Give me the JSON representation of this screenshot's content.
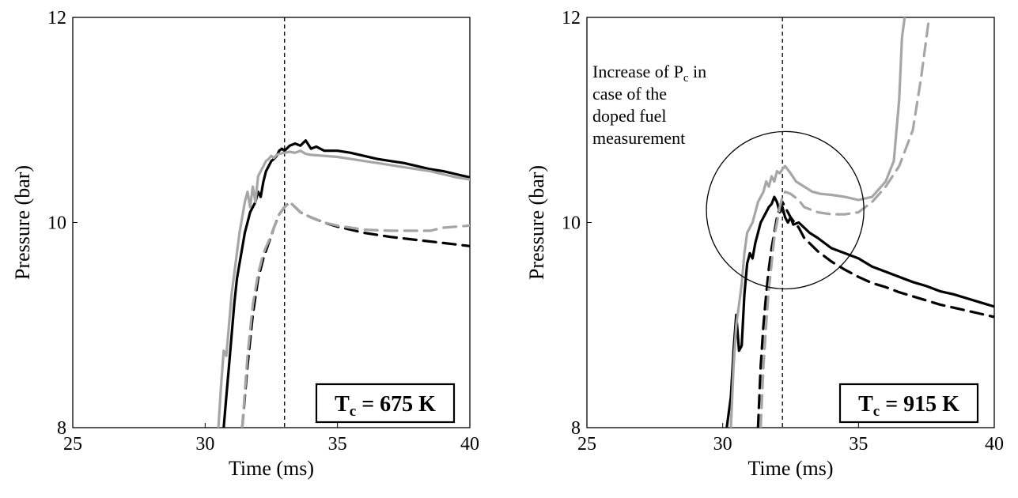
{
  "chart_data": [
    {
      "type": "line",
      "xlabel": "Time (ms)",
      "ylabel": "Pressure (bar)",
      "xlim": [
        25,
        40
      ],
      "ylim": [
        8,
        12
      ],
      "xticks": [
        "25",
        "30",
        "35",
        "40"
      ],
      "yticks": [
        "8",
        "10",
        "12"
      ],
      "label_main": "T",
      "label_sub": "c",
      "label_rest": " = 675 K",
      "vline_x": 33.0,
      "grid": false,
      "series": [
        {
          "color": "#000000",
          "style": "solid",
          "x": [
            30.7,
            30.8,
            30.9,
            31.0,
            31.1,
            31.2,
            31.3,
            31.4,
            31.5,
            31.6,
            31.7,
            31.8,
            31.9,
            32.0,
            32.1,
            32.2,
            32.3,
            32.4,
            32.5,
            32.6,
            32.7,
            32.8,
            32.9,
            33.0,
            33.2,
            33.4,
            33.6,
            33.8,
            34.0,
            34.2,
            34.5,
            35.0,
            35.5,
            36.0,
            36.5,
            37.0,
            37.5,
            38.0,
            38.5,
            39.0,
            39.5,
            40.0
          ],
          "y": [
            8.0,
            8.3,
            8.6,
            8.9,
            9.2,
            9.45,
            9.6,
            9.75,
            9.9,
            10.0,
            10.1,
            10.15,
            10.2,
            10.3,
            10.25,
            10.4,
            10.5,
            10.55,
            10.6,
            10.62,
            10.65,
            10.7,
            10.72,
            10.7,
            10.75,
            10.77,
            10.75,
            10.8,
            10.72,
            10.74,
            10.7,
            10.7,
            10.68,
            10.65,
            10.62,
            10.6,
            10.58,
            10.55,
            10.52,
            10.5,
            10.47,
            10.44
          ]
        },
        {
          "color": "#a6a6a6",
          "style": "solid",
          "x": [
            30.5,
            30.6,
            30.7,
            30.8,
            30.9,
            31.0,
            31.1,
            31.2,
            31.3,
            31.4,
            31.5,
            31.6,
            31.7,
            31.8,
            31.9,
            32.0,
            32.1,
            32.2,
            32.3,
            32.4,
            32.5,
            32.6,
            32.7,
            32.8,
            33.0,
            33.2,
            33.4,
            33.6,
            33.8,
            34.0,
            34.5,
            35.0,
            35.5,
            36.0,
            36.5,
            37.0,
            37.5,
            38.0,
            38.5,
            39.0,
            39.5,
            40.0
          ],
          "y": [
            8.0,
            8.4,
            8.75,
            8.7,
            9.0,
            9.3,
            9.5,
            9.7,
            9.9,
            10.05,
            10.2,
            10.3,
            10.15,
            10.35,
            10.2,
            10.45,
            10.5,
            10.55,
            10.6,
            10.62,
            10.65,
            10.63,
            10.66,
            10.67,
            10.68,
            10.69,
            10.68,
            10.7,
            10.67,
            10.66,
            10.65,
            10.64,
            10.62,
            10.6,
            10.58,
            10.56,
            10.54,
            10.52,
            10.5,
            10.47,
            10.44,
            10.42
          ]
        },
        {
          "color": "#000000",
          "style": "dashed",
          "x": [
            31.4,
            31.6,
            31.8,
            32.0,
            32.2,
            32.4,
            32.6,
            32.8,
            33.0,
            33.2,
            33.4,
            33.6,
            34.0,
            34.5,
            35.0,
            35.5,
            36.0,
            37.0,
            38.0,
            39.0,
            40.0
          ],
          "y": [
            8.0,
            8.6,
            9.1,
            9.45,
            9.65,
            9.8,
            9.95,
            10.08,
            10.15,
            10.2,
            10.15,
            10.1,
            10.05,
            10.0,
            9.96,
            9.93,
            9.9,
            9.86,
            9.83,
            9.8,
            9.77
          ]
        },
        {
          "color": "#a6a6a6",
          "style": "dashed",
          "x": [
            31.4,
            31.6,
            31.8,
            32.0,
            32.2,
            32.4,
            32.6,
            32.8,
            33.0,
            33.2,
            33.4,
            33.6,
            34.0,
            34.5,
            35.0,
            35.5,
            36.0,
            37.0,
            38.0,
            38.5,
            39.0,
            40.0
          ],
          "y": [
            8.0,
            8.7,
            9.2,
            9.5,
            9.7,
            9.82,
            9.95,
            10.08,
            10.15,
            10.2,
            10.15,
            10.1,
            10.05,
            10.0,
            9.97,
            9.95,
            9.93,
            9.92,
            9.92,
            9.92,
            9.95,
            9.97
          ]
        }
      ]
    },
    {
      "type": "line",
      "xlabel": "Time (ms)",
      "ylabel": "Pressure (bar)",
      "xlim": [
        25,
        40
      ],
      "ylim": [
        8,
        12
      ],
      "xticks": [
        "25",
        "30",
        "35",
        "40"
      ],
      "yticks": [
        "8",
        "10",
        "12"
      ],
      "label_main": "T",
      "label_sub": "c",
      "label_rest": " = 915 K",
      "vline_x": 32.2,
      "grid": false,
      "annotation_lines": [
        {
          "text": "Increase of P",
          "sub": "c",
          "tail": " in"
        },
        {
          "text": "case of the",
          "sub": "",
          "tail": ""
        },
        {
          "text": "doped fuel",
          "sub": "",
          "tail": ""
        },
        {
          "text": "measurement",
          "sub": "",
          "tail": ""
        }
      ],
      "circle": {
        "cx": 32.3,
        "cy": 10.12,
        "r_x": 2.9
      },
      "series": [
        {
          "color": "#000000",
          "style": "solid",
          "x": [
            30.15,
            30.3,
            30.4,
            30.5,
            30.6,
            30.7,
            30.8,
            30.9,
            31.0,
            31.1,
            31.2,
            31.3,
            31.4,
            31.5,
            31.6,
            31.7,
            31.8,
            31.9,
            32.0,
            32.1,
            32.2,
            32.3,
            32.4,
            32.5,
            32.6,
            32.8,
            33.0,
            33.2,
            33.5,
            34.0,
            34.5,
            35.0,
            35.5,
            36.0,
            36.5,
            37.0,
            37.5,
            38.0,
            38.5,
            39.0,
            39.5,
            40.0
          ],
          "y": [
            8.0,
            8.3,
            8.75,
            9.1,
            8.75,
            8.8,
            9.3,
            9.6,
            9.7,
            9.65,
            9.8,
            9.9,
            10.0,
            10.05,
            10.1,
            10.15,
            10.18,
            10.25,
            10.2,
            10.1,
            10.15,
            10.05,
            10.0,
            10.05,
            9.98,
            10.0,
            9.95,
            9.9,
            9.85,
            9.75,
            9.7,
            9.65,
            9.57,
            9.52,
            9.47,
            9.42,
            9.38,
            9.33,
            9.3,
            9.26,
            9.22,
            9.18
          ]
        },
        {
          "color": "#a6a6a6",
          "style": "solid",
          "x": [
            30.3,
            30.4,
            30.5,
            30.6,
            30.7,
            30.8,
            30.9,
            31.0,
            31.1,
            31.2,
            31.3,
            31.4,
            31.5,
            31.6,
            31.7,
            31.8,
            31.9,
            32.0,
            32.1,
            32.2,
            32.3,
            32.5,
            32.7,
            33.0,
            33.3,
            33.6,
            34.0,
            34.5,
            35.0,
            35.5,
            36.0,
            36.3,
            36.5,
            36.6,
            36.7
          ],
          "y": [
            8.0,
            8.6,
            9.0,
            9.2,
            9.4,
            9.7,
            9.9,
            9.95,
            10.0,
            10.1,
            10.2,
            10.25,
            10.3,
            10.4,
            10.35,
            10.45,
            10.4,
            10.5,
            10.48,
            10.52,
            10.55,
            10.48,
            10.4,
            10.35,
            10.3,
            10.28,
            10.27,
            10.25,
            10.22,
            10.25,
            10.4,
            10.6,
            11.2,
            11.8,
            12.0
          ]
        },
        {
          "color": "#000000",
          "style": "dashed",
          "x": [
            31.3,
            31.4,
            31.5,
            31.6,
            31.7,
            31.8,
            31.9,
            32.0,
            32.1,
            32.2,
            32.3,
            32.5,
            32.8,
            33.0,
            33.5,
            34.0,
            34.5,
            35.0,
            35.5,
            36.0,
            36.5,
            37.0,
            37.5,
            38.0,
            38.5,
            39.0,
            39.5,
            40.0
          ],
          "y": [
            8.0,
            8.6,
            9.0,
            9.3,
            9.55,
            9.75,
            9.9,
            10.05,
            10.15,
            10.2,
            10.15,
            10.05,
            9.95,
            9.85,
            9.72,
            9.62,
            9.54,
            9.47,
            9.41,
            9.37,
            9.32,
            9.28,
            9.24,
            9.2,
            9.17,
            9.14,
            9.11,
            9.08
          ]
        },
        {
          "color": "#a6a6a6",
          "style": "dashed",
          "x": [
            31.4,
            31.5,
            31.6,
            31.7,
            31.8,
            31.9,
            32.0,
            32.1,
            32.2,
            32.3,
            32.5,
            32.8,
            33.0,
            33.5,
            34.0,
            34.5,
            35.0,
            35.5,
            36.0,
            36.5,
            37.0,
            37.3,
            37.5,
            37.6
          ],
          "y": [
            8.0,
            8.6,
            9.0,
            9.35,
            9.6,
            9.85,
            10.0,
            10.15,
            10.25,
            10.3,
            10.28,
            10.22,
            10.15,
            10.1,
            10.08,
            10.08,
            10.1,
            10.2,
            10.35,
            10.55,
            10.9,
            11.4,
            11.8,
            12.0
          ]
        }
      ]
    }
  ]
}
